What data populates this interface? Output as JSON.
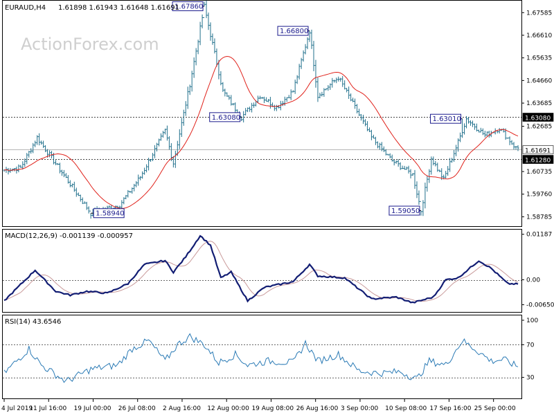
{
  "chart_data": [
    {
      "type": "candlestick",
      "panel": "price",
      "title": "EURAUD,H4",
      "ohlc_label": "1.61898 1.61943 1.61648 1.61691",
      "watermark": "ActionForex.com",
      "ylim": [
        1.5838,
        1.6807
      ],
      "y_ticks": [
        "1.67585",
        "1.66610",
        "1.65635",
        "1.64660",
        "1.63685",
        "1.62685",
        "1.60735",
        "1.59760",
        "1.58785"
      ],
      "levels": [
        {
          "label": "1.63080",
          "value": 1.6308,
          "style": "dotted"
        },
        {
          "label": "1.61280",
          "value": 1.6128,
          "style": "dotted"
        },
        {
          "label": "1.61691",
          "value": 1.61691,
          "style": "current"
        }
      ],
      "annotations": [
        {
          "label": "1.67860",
          "value": 1.6786,
          "bar": 97
        },
        {
          "label": "1.66800",
          "value": 1.668,
          "bar": 148
        },
        {
          "label": "1.63080",
          "value": 1.6308,
          "bar": 115
        },
        {
          "label": "1.58940",
          "value": 1.5894,
          "bar": 42
        },
        {
          "label": "1.59050",
          "value": 1.5905,
          "bar": 202
        },
        {
          "label": "1.63010",
          "value": 1.6301,
          "bar": 222
        }
      ],
      "keypoints": [
        [
          0,
          1.608
        ],
        [
          8,
          1.609
        ],
        [
          16,
          1.622
        ],
        [
          28,
          1.607
        ],
        [
          42,
          1.5894
        ],
        [
          56,
          1.593
        ],
        [
          66,
          1.605
        ],
        [
          78,
          1.625
        ],
        [
          82,
          1.611
        ],
        [
          90,
          1.645
        ],
        [
          97,
          1.6786
        ],
        [
          106,
          1.642
        ],
        [
          115,
          1.6308
        ],
        [
          124,
          1.64
        ],
        [
          132,
          1.635
        ],
        [
          140,
          1.642
        ],
        [
          148,
          1.668
        ],
        [
          152,
          1.64
        ],
        [
          162,
          1.648
        ],
        [
          170,
          1.635
        ],
        [
          178,
          1.622
        ],
        [
          188,
          1.612
        ],
        [
          198,
          1.606
        ],
        [
          202,
          1.5905
        ],
        [
          207,
          1.613
        ],
        [
          213,
          1.604
        ],
        [
          220,
          1.62
        ],
        [
          224,
          1.6301
        ],
        [
          233,
          1.623
        ],
        [
          240,
          1.626
        ],
        [
          248,
          1.6175
        ]
      ]
    },
    {
      "type": "line",
      "panel": "macd",
      "title": "MACD(12,26,9) -0.001139 -0.000957",
      "ylim": [
        -0.0082,
        0.0129
      ],
      "y_ticks": [
        "0.01187",
        "0.00",
        "-0.006502"
      ],
      "zero_label": "0.00",
      "keypoints": [
        [
          0,
          -0.0055
        ],
        [
          15,
          0.0025
        ],
        [
          25,
          -0.003
        ],
        [
          32,
          -0.004
        ],
        [
          40,
          -0.003
        ],
        [
          50,
          -0.0035
        ],
        [
          60,
          -0.001
        ],
        [
          68,
          0.004
        ],
        [
          78,
          0.005
        ],
        [
          82,
          0.002
        ],
        [
          88,
          0.006
        ],
        [
          95,
          0.0115
        ],
        [
          100,
          0.009
        ],
        [
          105,
          0.0005
        ],
        [
          110,
          0.002
        ],
        [
          118,
          -0.0055
        ],
        [
          126,
          -0.002
        ],
        [
          140,
          -0.0005
        ],
        [
          148,
          0.004
        ],
        [
          152,
          0.001
        ],
        [
          165,
          0.0005
        ],
        [
          178,
          -0.005
        ],
        [
          190,
          -0.0045
        ],
        [
          198,
          -0.006
        ],
        [
          208,
          -0.0045
        ],
        [
          214,
          0.0
        ],
        [
          220,
          0.0005
        ],
        [
          230,
          0.005
        ],
        [
          236,
          0.003
        ],
        [
          244,
          -0.001
        ],
        [
          248,
          -0.0011
        ]
      ]
    },
    {
      "type": "line",
      "panel": "rsi",
      "title": "RSI(14) 43.6546",
      "ylim": [
        0,
        100
      ],
      "y_ticks": [
        "100",
        "70",
        "30"
      ],
      "levels": [
        70,
        30
      ],
      "keypoints": [
        [
          0,
          35
        ],
        [
          12,
          65
        ],
        [
          18,
          45
        ],
        [
          30,
          25
        ],
        [
          42,
          40
        ],
        [
          55,
          45
        ],
        [
          62,
          65
        ],
        [
          70,
          75
        ],
        [
          78,
          50
        ],
        [
          84,
          70
        ],
        [
          90,
          80
        ],
        [
          97,
          70
        ],
        [
          104,
          48
        ],
        [
          112,
          58
        ],
        [
          118,
          45
        ],
        [
          128,
          50
        ],
        [
          140,
          48
        ],
        [
          146,
          72
        ],
        [
          152,
          50
        ],
        [
          162,
          58
        ],
        [
          172,
          38
        ],
        [
          182,
          35
        ],
        [
          192,
          37
        ],
        [
          200,
          28
        ],
        [
          206,
          50
        ],
        [
          214,
          45
        ],
        [
          222,
          75
        ],
        [
          228,
          65
        ],
        [
          236,
          50
        ],
        [
          242,
          52
        ],
        [
          248,
          44
        ]
      ]
    }
  ],
  "x_ticks": [
    "4 Jul 2019",
    "11 Jul 16:00",
    "19 Jul 00:00",
    "26 Jul 08:00",
    "2 Aug 16:00",
    "12 Aug 00:00",
    "19 Aug 08:00",
    "26 Aug 16:00",
    "3 Sep 00:00",
    "10 Sep 08:00",
    "17 Sep 16:00",
    "25 Sep 00:00"
  ],
  "colors": {
    "bull": "#1f6f8b",
    "bear": "#1f6f8b",
    "ma": "#e0211a",
    "macd": "#121d73",
    "signal": "#c99a9a",
    "rsi": "#2a7ab5",
    "grid": "#000000",
    "bg": "#ffffff"
  }
}
